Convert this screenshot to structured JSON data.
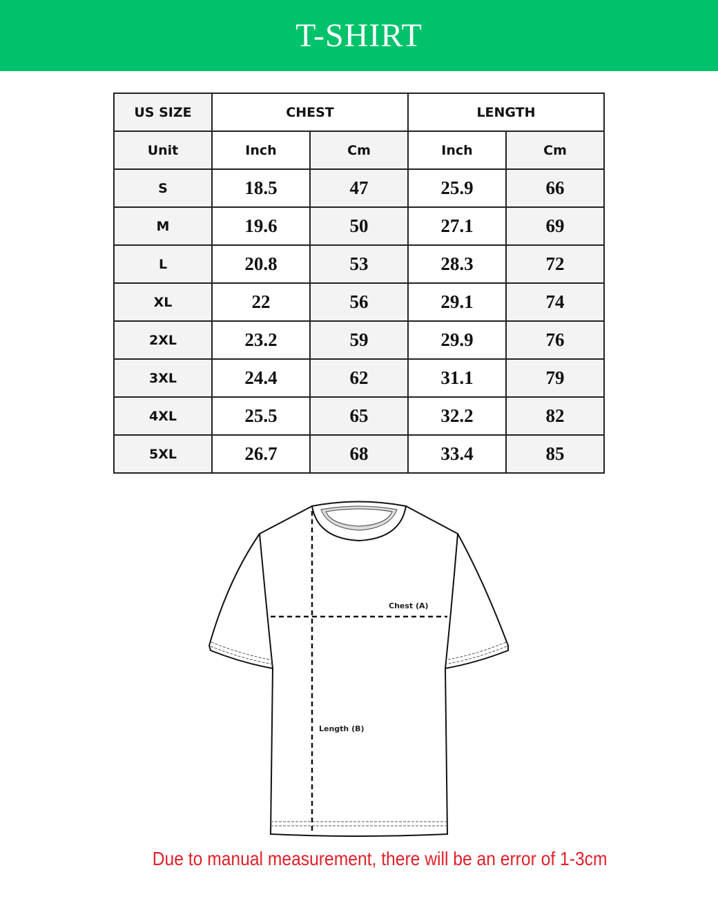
{
  "header": {
    "title": "T-SHIRT",
    "background_color": "#00c26b"
  },
  "size_table": {
    "headers": {
      "size": "US SIZE",
      "chest": "CHEST",
      "length": "LENGTH"
    },
    "unit_row": {
      "label": "Unit",
      "chest_inch": "Inch",
      "chest_cm": "Cm",
      "length_inch": "Inch",
      "length_cm": "Cm"
    },
    "rows": [
      {
        "size": "S",
        "chest_inch": "18.5",
        "chest_cm": "47",
        "length_inch": "25.9",
        "length_cm": "66"
      },
      {
        "size": "M",
        "chest_inch": "19.6",
        "chest_cm": "50",
        "length_inch": "27.1",
        "length_cm": "69"
      },
      {
        "size": "L",
        "chest_inch": "20.8",
        "chest_cm": "53",
        "length_inch": "28.3",
        "length_cm": "72"
      },
      {
        "size": "XL",
        "chest_inch": "22",
        "chest_cm": "56",
        "length_inch": "29.1",
        "length_cm": "74"
      },
      {
        "size": "2XL",
        "chest_inch": "23.2",
        "chest_cm": "59",
        "length_inch": "29.9",
        "length_cm": "76"
      },
      {
        "size": "3XL",
        "chest_inch": "24.4",
        "chest_cm": "62",
        "length_inch": "31.1",
        "length_cm": "79"
      },
      {
        "size": "4XL",
        "chest_inch": "25.5",
        "chest_cm": "65",
        "length_inch": "32.2",
        "length_cm": "82"
      },
      {
        "size": "5XL",
        "chest_inch": "26.7",
        "chest_cm": "68",
        "length_inch": "33.4",
        "length_cm": "85"
      }
    ]
  },
  "diagram": {
    "chest_label": "Chest (A)",
    "length_label": "Length (B)"
  },
  "footer": {
    "note": "Due to manual measurement, there will be an error of 1-3cm",
    "note_color": "#e0202a"
  }
}
